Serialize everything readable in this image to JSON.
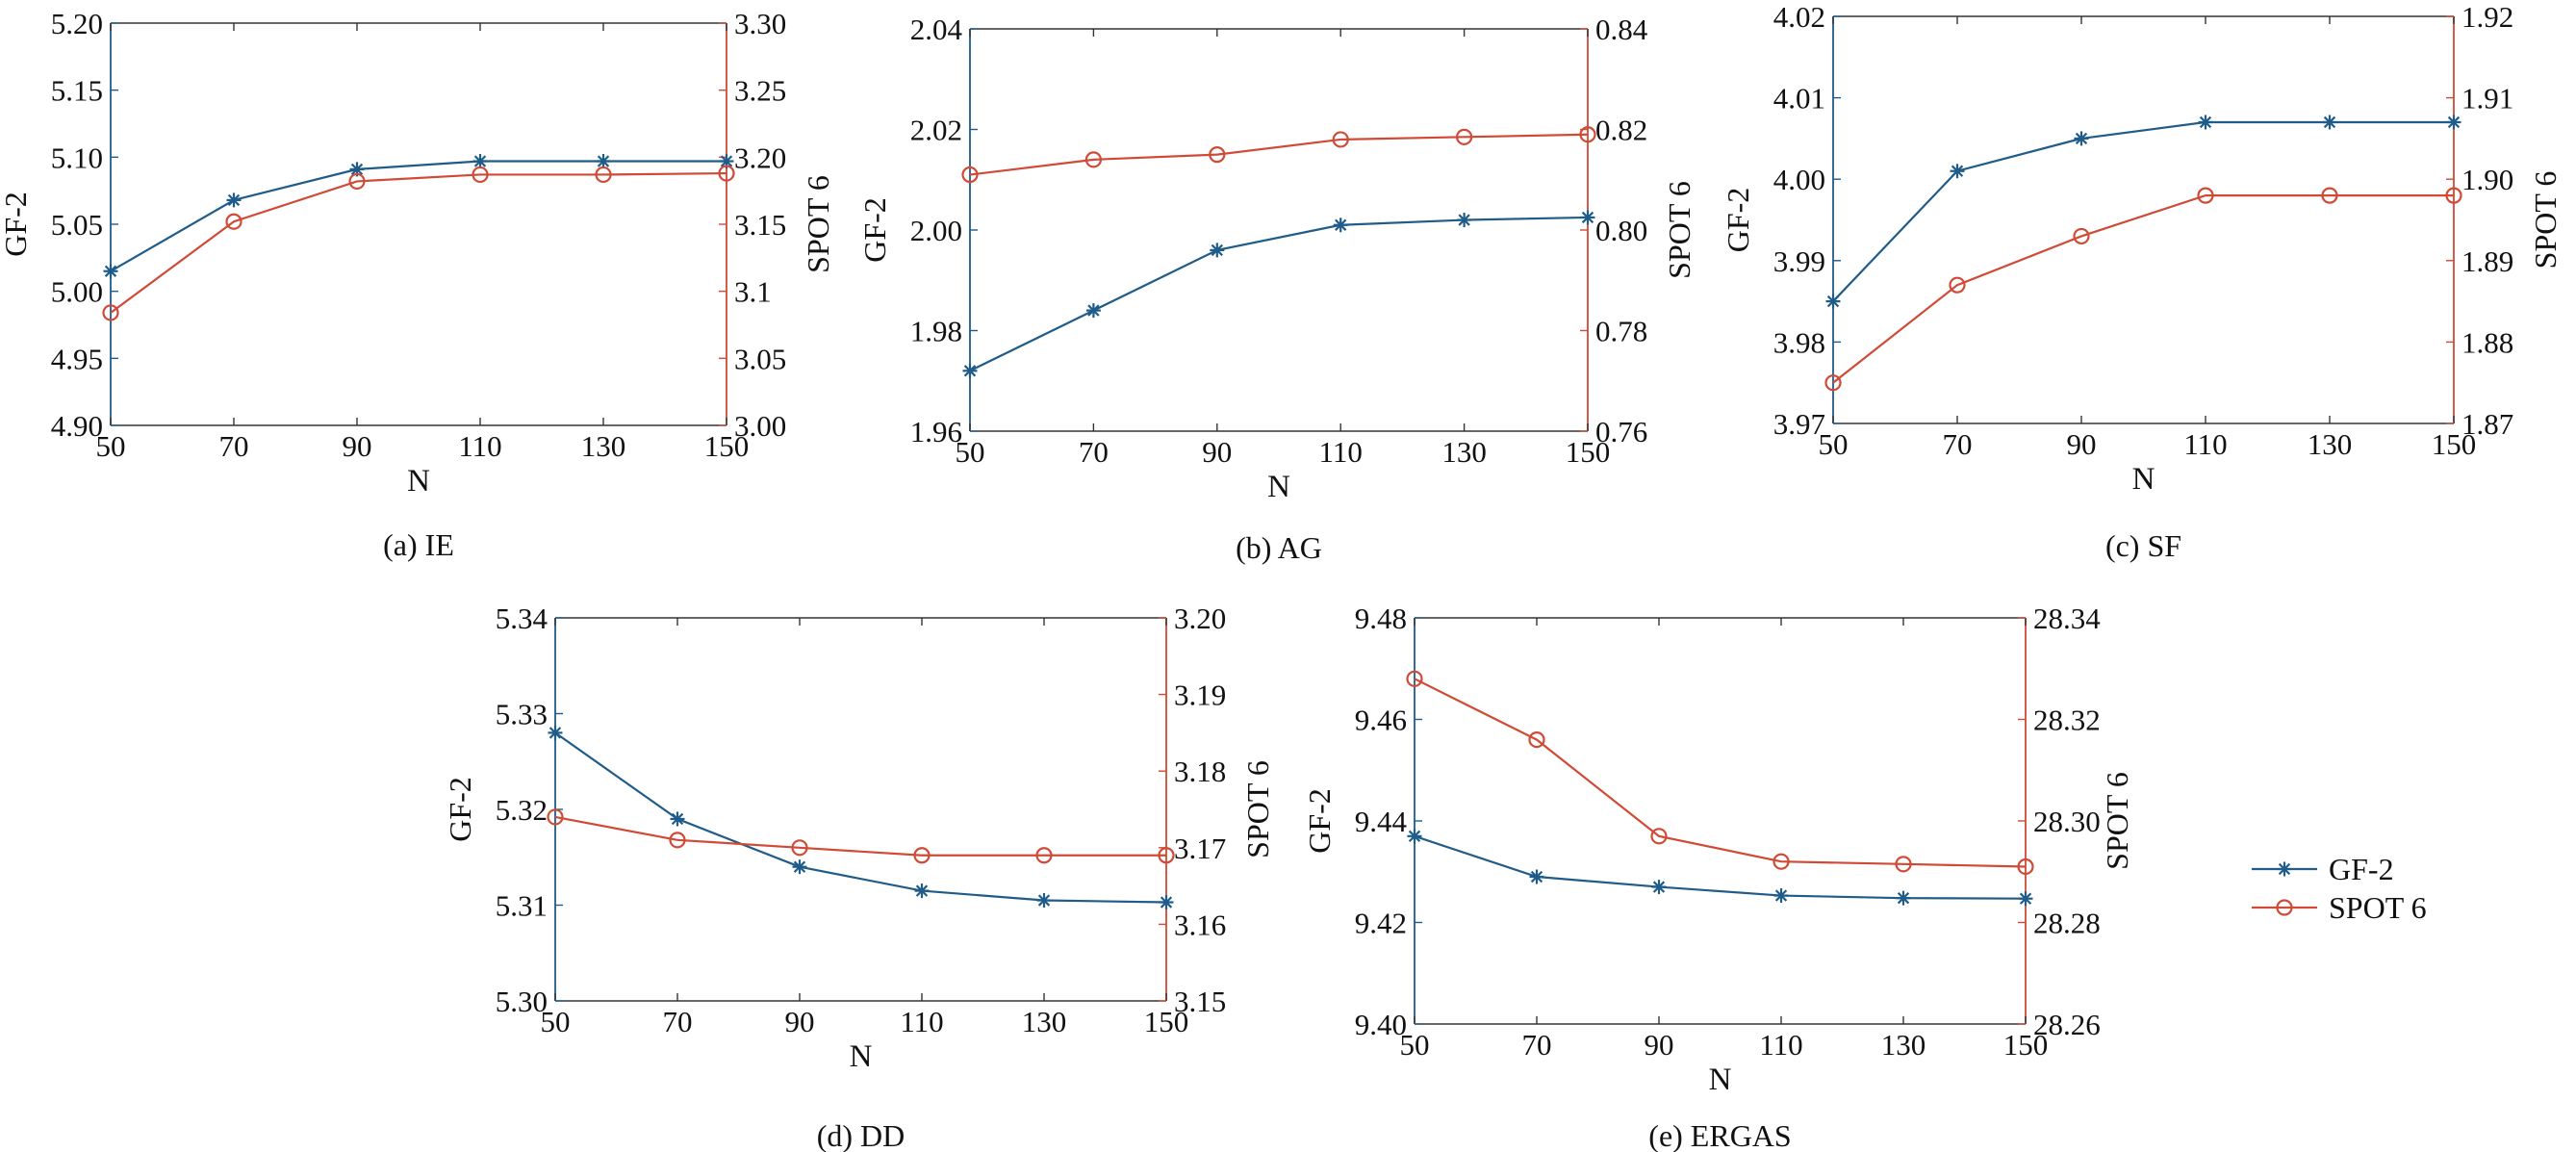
{
  "legend": [
    {
      "name": "GF-2",
      "color": "#1f5c8a",
      "marker": "star"
    },
    {
      "name": "SPOT 6",
      "color": "#d04a35",
      "marker": "circle"
    }
  ],
  "chart_data": [
    {
      "type": "line",
      "caption": "(a) IE",
      "xlabel": "N",
      "ylabel_left": "GF-2",
      "ylabel_right": "SPOT 6",
      "x": [
        50,
        70,
        90,
        110,
        130,
        150
      ],
      "xticks": [
        "50",
        "70",
        "90",
        "110",
        "130",
        "150"
      ],
      "ylim_left": [
        4.9,
        5.2
      ],
      "yticks_left": [
        "4.90",
        "4.95",
        "5.00",
        "5.05",
        "5.10",
        "5.15",
        "5.20"
      ],
      "ylim_right": [
        3.0,
        3.3
      ],
      "yticks_right": [
        "3.00",
        "3.05",
        "3.1",
        "3.15",
        "3.20",
        "3.25",
        "3.30"
      ],
      "series": [
        {
          "name": "GF-2",
          "axis": "left",
          "values": [
            5.015,
            5.068,
            5.091,
            5.097,
            5.097,
            5.097
          ]
        },
        {
          "name": "SPOT 6",
          "axis": "right",
          "values": [
            3.084,
            3.152,
            3.182,
            3.187,
            3.187,
            3.188
          ]
        }
      ]
    },
    {
      "type": "line",
      "caption": "(b) AG",
      "xlabel": "N",
      "ylabel_left": "GF-2",
      "ylabel_right": "SPOT 6",
      "x": [
        50,
        70,
        90,
        110,
        130,
        150
      ],
      "xticks": [
        "50",
        "70",
        "90",
        "110",
        "130",
        "150"
      ],
      "ylim_left": [
        1.96,
        2.04
      ],
      "yticks_left": [
        "1.96",
        "1.98",
        "2.00",
        "2.02",
        "2.04"
      ],
      "ylim_right": [
        0.76,
        0.84
      ],
      "yticks_right": [
        "0.76",
        "0.78",
        "0.80",
        "0.82",
        "0.84"
      ],
      "series": [
        {
          "name": "GF-2",
          "axis": "left",
          "values": [
            1.972,
            1.984,
            1.996,
            2.001,
            2.002,
            2.0025
          ]
        },
        {
          "name": "SPOT 6",
          "axis": "right",
          "values": [
            0.811,
            0.814,
            0.815,
            0.818,
            0.8185,
            0.819
          ]
        }
      ]
    },
    {
      "type": "line",
      "caption": "(c) SF",
      "xlabel": "N",
      "ylabel_left": "GF-2",
      "ylabel_right": "SPOT 6",
      "x": [
        50,
        70,
        90,
        110,
        130,
        150
      ],
      "xticks": [
        "50",
        "70",
        "90",
        "110",
        "130",
        "150"
      ],
      "ylim_left": [
        3.97,
        4.02
      ],
      "yticks_left": [
        "3.97",
        "3.98",
        "3.99",
        "4.00",
        "4.01",
        "4.02"
      ],
      "ylim_right": [
        1.87,
        1.92
      ],
      "yticks_right": [
        "1.87",
        "1.88",
        "1.89",
        "1.90",
        "1.91",
        "1.92"
      ],
      "series": [
        {
          "name": "GF-2",
          "axis": "left",
          "values": [
            3.985,
            4.001,
            4.005,
            4.007,
            4.007,
            4.007
          ]
        },
        {
          "name": "SPOT 6",
          "axis": "right",
          "values": [
            1.875,
            1.887,
            1.893,
            1.898,
            1.898,
            1.898
          ]
        }
      ]
    },
    {
      "type": "line",
      "caption": "(d) DD",
      "xlabel": "N",
      "ylabel_left": "GF-2",
      "ylabel_right": "SPOT 6",
      "x": [
        50,
        70,
        90,
        110,
        130,
        150
      ],
      "xticks": [
        "50",
        "70",
        "90",
        "110",
        "130",
        "150"
      ],
      "ylim_left": [
        5.3,
        5.34
      ],
      "yticks_left": [
        "5.30",
        "5.31",
        "5.32",
        "5.33",
        "5.34"
      ],
      "ylim_right": [
        3.15,
        3.2
      ],
      "yticks_right": [
        "3.15",
        "3.16",
        "3.17",
        "3.18",
        "3.19",
        "3.20"
      ],
      "series": [
        {
          "name": "GF-2",
          "axis": "left",
          "values": [
            5.328,
            5.319,
            5.314,
            5.3115,
            5.3105,
            5.3103
          ]
        },
        {
          "name": "SPOT 6",
          "axis": "right",
          "values": [
            3.174,
            3.171,
            3.17,
            3.169,
            3.169,
            3.169
          ]
        }
      ]
    },
    {
      "type": "line",
      "caption": "(e) ERGAS",
      "xlabel": "N",
      "ylabel_left": "GF-2",
      "ylabel_right": "SPOT 6",
      "x": [
        50,
        70,
        90,
        110,
        130,
        150
      ],
      "xticks": [
        "50",
        "70",
        "90",
        "110",
        "130",
        "150"
      ],
      "ylim_left": [
        9.4,
        9.48
      ],
      "yticks_left": [
        "9.40",
        "9.42",
        "9.44",
        "9.46",
        "9.48"
      ],
      "ylim_right": [
        28.26,
        28.34
      ],
      "yticks_right": [
        "28.26",
        "28.28",
        "28.30",
        "28.32",
        "28.34"
      ],
      "series": [
        {
          "name": "GF-2",
          "axis": "left",
          "values": [
            9.437,
            9.429,
            9.427,
            9.4253,
            9.4248,
            9.4247
          ]
        },
        {
          "name": "SPOT 6",
          "axis": "right",
          "values": [
            28.328,
            28.316,
            28.297,
            28.292,
            28.2915,
            28.291
          ]
        }
      ]
    }
  ]
}
